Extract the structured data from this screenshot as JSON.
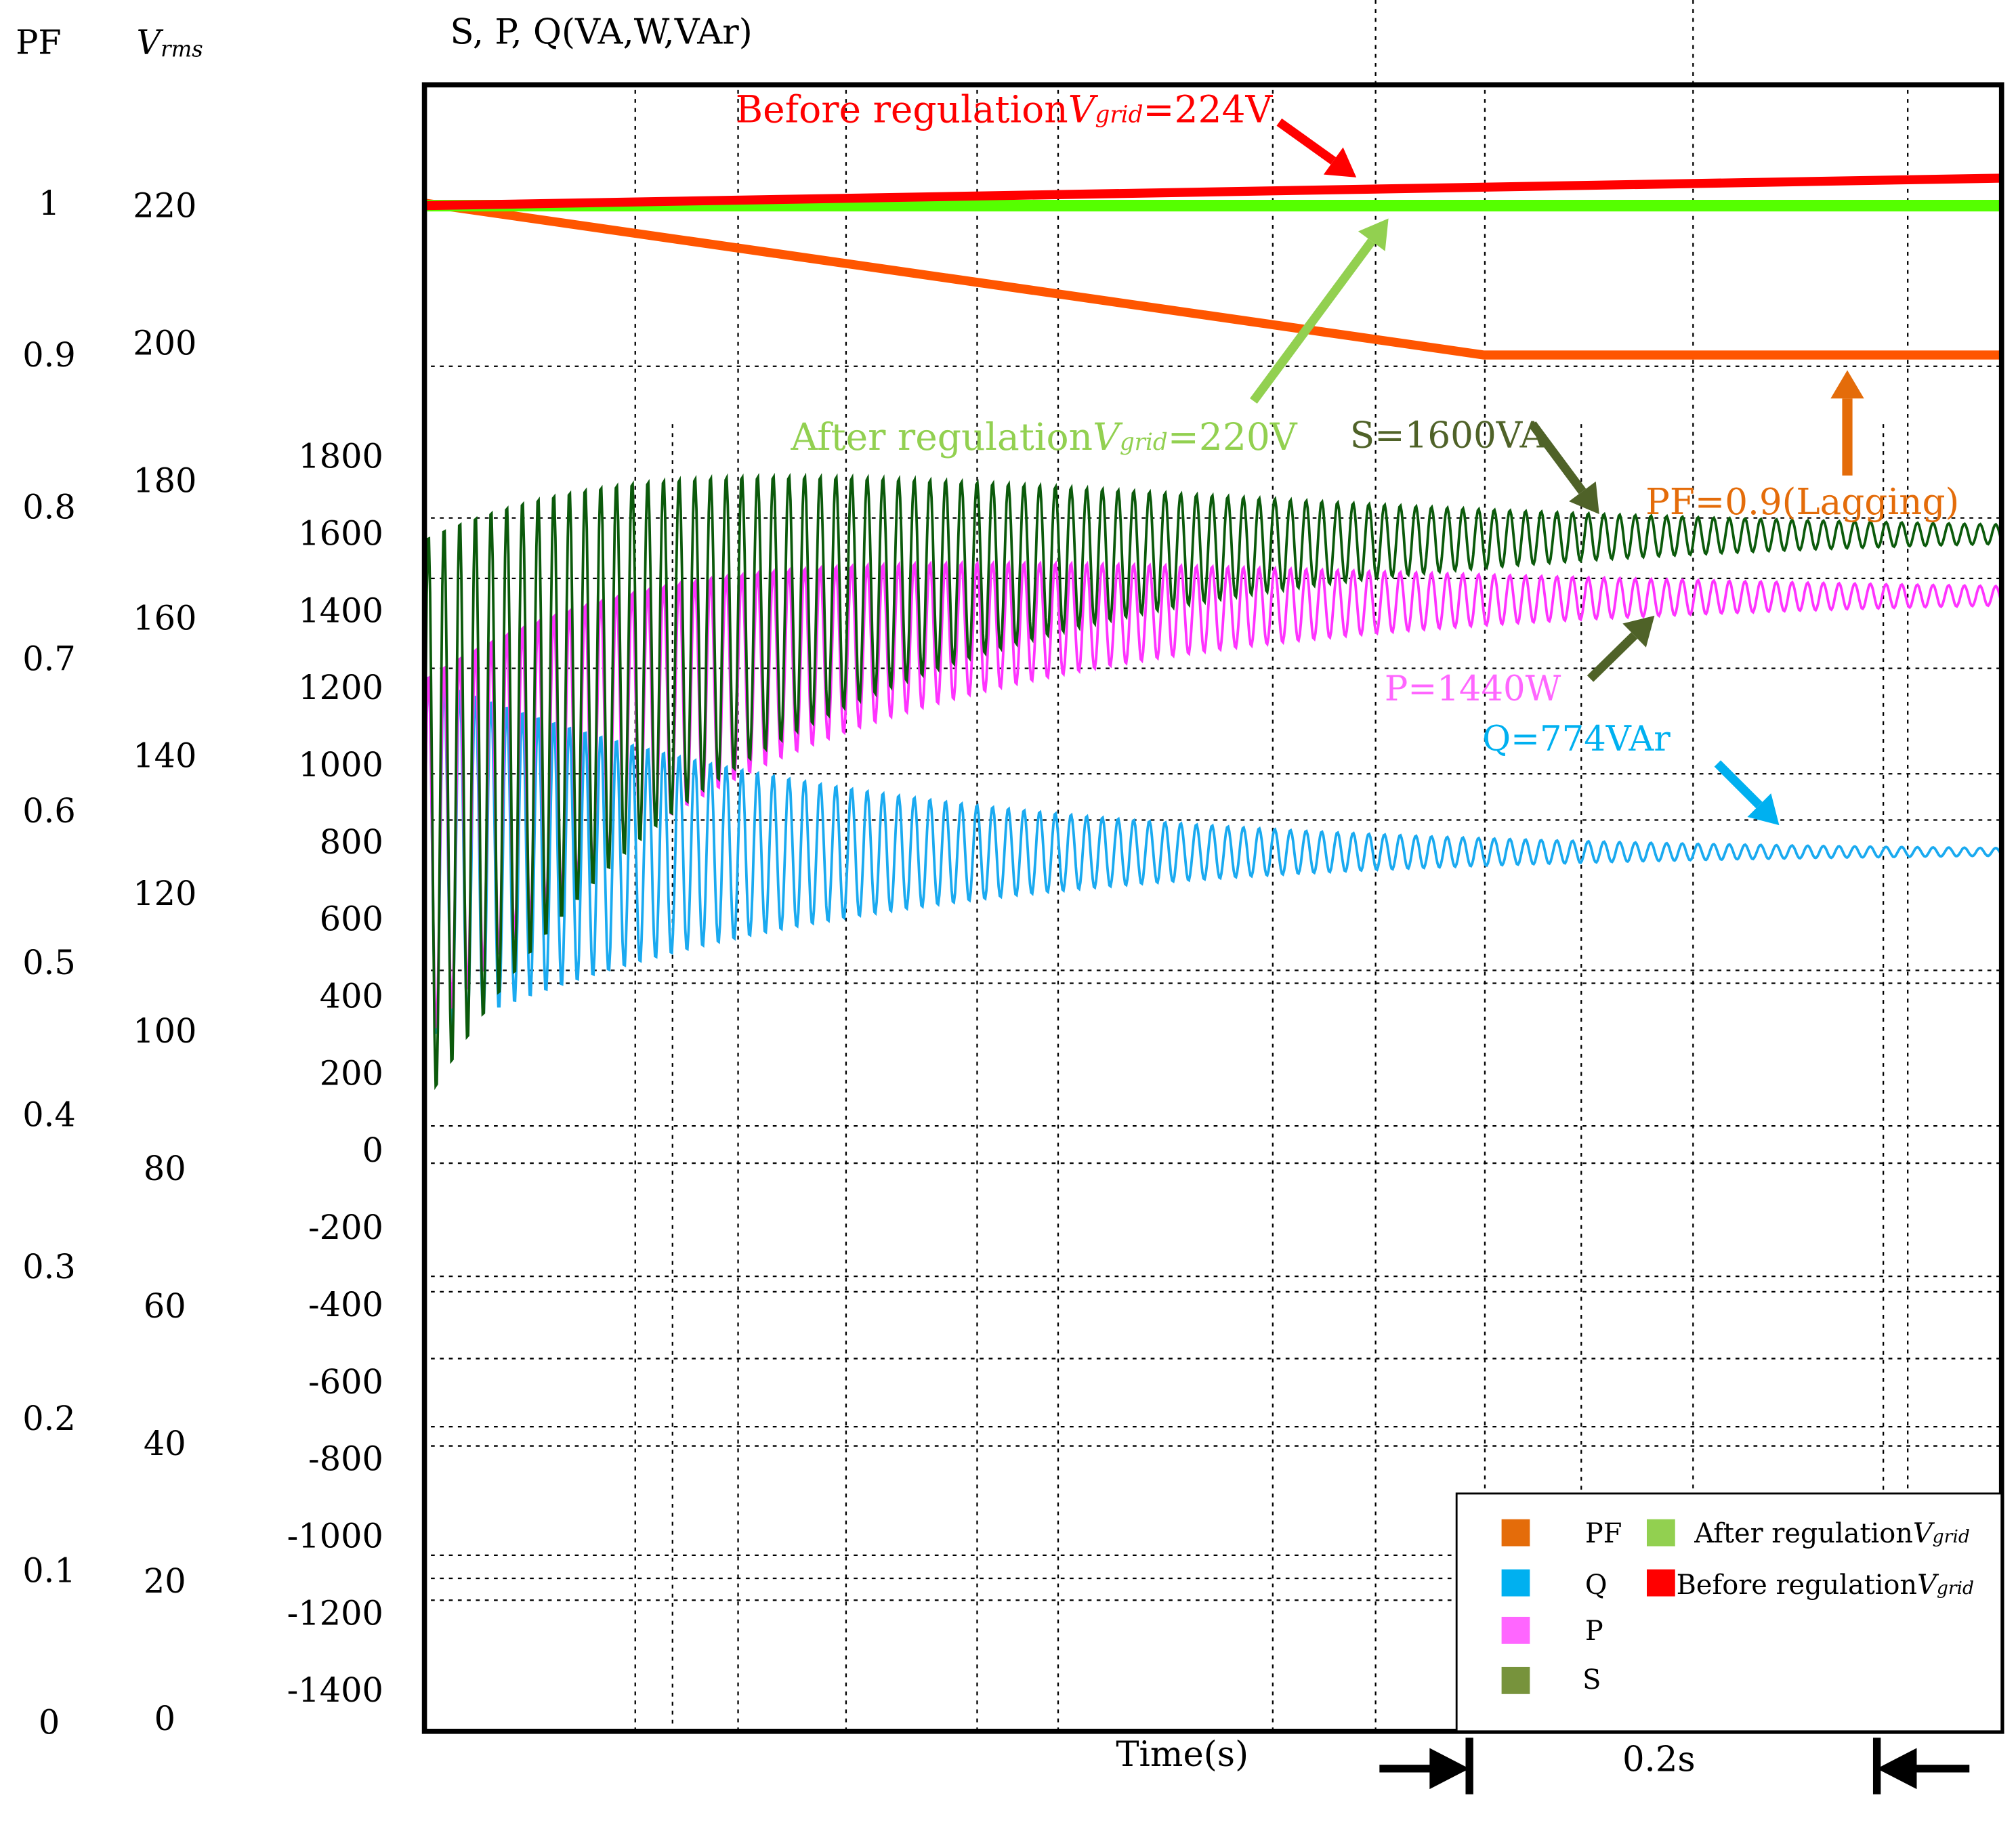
{
  "chart_data": {
    "type": "line",
    "title": "",
    "axes": {
      "pf": {
        "label": "PF",
        "ticks": [
          "0",
          "0.1",
          "0.2",
          "0.3",
          "0.4",
          "0.5",
          "0.6",
          "0.7",
          "0.8",
          "0.9",
          "1"
        ],
        "range": [
          0,
          1
        ]
      },
      "vrms": {
        "label_main": "V",
        "label_sub": "rms",
        "ticks": [
          "0",
          "20",
          "40",
          "60",
          "80",
          "100",
          "120",
          "140",
          "160",
          "180",
          "200",
          "220"
        ],
        "range": [
          0,
          220
        ]
      },
      "power": {
        "label": "S, P, Q(VA,W,VAr)",
        "ticks": [
          "-1400",
          "-1200",
          "-1000",
          "-800",
          "-600",
          "-400",
          "-200",
          "0",
          "200",
          "400",
          "600",
          "800",
          "1000",
          "1200",
          "1400",
          "1600",
          "1800"
        ],
        "range": [
          -1400,
          1800
        ]
      },
      "time": {
        "label": "Time(s)",
        "scale_marker": "0.2s",
        "range_s": [
          0,
          0.774
        ]
      }
    },
    "grid": true,
    "legend_placement": "bottom-right",
    "legend": [
      {
        "label": "PF",
        "color": "#e46c0a"
      },
      {
        "label": "Q",
        "color": "#00b0f0"
      },
      {
        "label": "P",
        "color": "#ff66ff"
      },
      {
        "label": "S",
        "color": "#77933c"
      },
      {
        "label_main": "After regulation",
        "label_sub": "grid",
        "color": "#92d050"
      },
      {
        "label_main": "Before regulation",
        "label_sub": "grid",
        "color": "#ff0000"
      }
    ],
    "series": [
      {
        "name": "Before regulation Vgrid",
        "axis": "vrms",
        "color": "#ff0000",
        "kind": "ramp",
        "points": [
          [
            0,
            220
          ],
          [
            0.774,
            224
          ]
        ]
      },
      {
        "name": "After regulation Vgrid",
        "axis": "vrms",
        "color": "#55ff00",
        "kind": "ramp",
        "points": [
          [
            0,
            220
          ],
          [
            0.774,
            220
          ]
        ]
      },
      {
        "name": "PF",
        "axis": "pf",
        "color": "#ff5500",
        "kind": "ramp",
        "points": [
          [
            0,
            1
          ],
          [
            0.52,
            0.9
          ],
          [
            0.774,
            0.9
          ]
        ]
      },
      {
        "name": "S",
        "axis": "power",
        "color": "#0b5a0b",
        "kind": "oscillation",
        "initial_mean": 850,
        "steady_value": 1600,
        "initial_amplitude": 750,
        "final_amplitude": 25,
        "frequency_hz": 130
      },
      {
        "name": "P",
        "axis": "power",
        "color": "#ff33ff",
        "kind": "oscillation",
        "initial_mean": 750,
        "steady_value": 1440,
        "initial_amplitude": 480,
        "final_amplitude": 25,
        "frequency_hz": 130
      },
      {
        "name": "Q",
        "axis": "power",
        "color": "#1aaaf0",
        "kind": "oscillation",
        "initial_mean": 760,
        "steady_value": 774,
        "initial_amplitude": 480,
        "final_amplitude": 10,
        "frequency_hz": 130
      }
    ],
    "annotations": [
      {
        "id": "before",
        "main": "Before regulation",
        "var": "V",
        "sub": "grid",
        "tail": "=224V",
        "color": "#ff0000"
      },
      {
        "id": "after",
        "main": "After regulation",
        "var": "V",
        "sub": "grid",
        "tail": "=220V",
        "color": "#92d050"
      },
      {
        "id": "s",
        "text": "S=1600VA",
        "color": "#4f6228"
      },
      {
        "id": "pf",
        "text": "PF=0.9(Lagging)",
        "color": "#e46c0a"
      },
      {
        "id": "p",
        "text": "P=1440W",
        "color": "#ff66ff"
      },
      {
        "id": "q",
        "text": "Q=774VAr",
        "color": "#00b0f0"
      }
    ]
  }
}
